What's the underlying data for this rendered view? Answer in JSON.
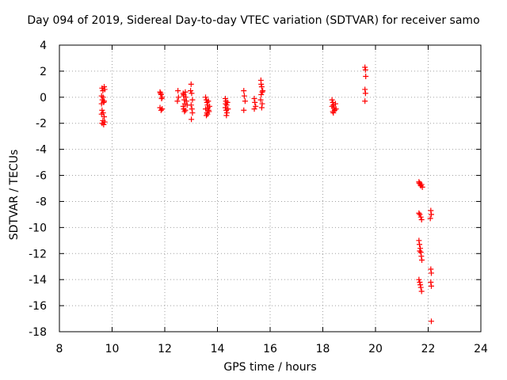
{
  "chart_data": {
    "type": "scatter",
    "title": "Day 094 of 2019, Sidereal Day-to-day VTEC variation (SDTVAR) for receiver samo",
    "xlabel": "GPS time / hours",
    "ylabel": "SDTVAR / TECUs",
    "xlim": [
      8,
      24
    ],
    "ylim": [
      -18,
      4
    ],
    "xticks": [
      8,
      10,
      12,
      14,
      16,
      18,
      20,
      22,
      24
    ],
    "yticks": [
      4,
      2,
      0,
      -2,
      -4,
      -6,
      -8,
      -10,
      -12,
      -14,
      -16,
      -18
    ],
    "grid": true,
    "marker": "+",
    "color": "#ff0000",
    "series": [
      {
        "name": "SDTVAR",
        "points": [
          [
            9.62,
            0.7
          ],
          [
            9.65,
            0.5
          ],
          [
            9.7,
            0.8
          ],
          [
            9.72,
            0.6
          ],
          [
            9.6,
            0.1
          ],
          [
            9.63,
            -0.2
          ],
          [
            9.68,
            -0.4
          ],
          [
            9.6,
            -0.5
          ],
          [
            9.66,
            0.0
          ],
          [
            9.7,
            -0.3
          ],
          [
            9.62,
            -1.0
          ],
          [
            9.66,
            -1.2
          ],
          [
            9.7,
            -1.5
          ],
          [
            9.6,
            -1.3
          ],
          [
            9.65,
            -1.8
          ],
          [
            9.62,
            -2.0
          ],
          [
            9.68,
            -2.1
          ],
          [
            9.72,
            -1.9
          ],
          [
            11.82,
            0.4
          ],
          [
            11.86,
            0.2
          ],
          [
            11.9,
            0.0
          ],
          [
            11.84,
            0.3
          ],
          [
            11.88,
            -0.1
          ],
          [
            11.82,
            -0.8
          ],
          [
            11.86,
            -1.0
          ],
          [
            11.9,
            -0.9
          ],
          [
            12.5,
            0.5
          ],
          [
            12.52,
            0.0
          ],
          [
            12.48,
            -0.3
          ],
          [
            12.7,
            0.3
          ],
          [
            12.72,
            0.1
          ],
          [
            12.74,
            -0.2
          ],
          [
            12.76,
            -0.5
          ],
          [
            12.78,
            0.4
          ],
          [
            12.7,
            -0.7
          ],
          [
            12.72,
            -0.9
          ],
          [
            12.75,
            -1.1
          ],
          [
            12.8,
            0.0
          ],
          [
            12.82,
            -0.3
          ],
          [
            12.85,
            -0.6
          ],
          [
            12.78,
            -1.0
          ],
          [
            12.72,
            0.2
          ],
          [
            13.0,
            1.0
          ],
          [
            13.02,
            0.3
          ],
          [
            13.05,
            -0.2
          ],
          [
            13.0,
            -0.6
          ],
          [
            13.03,
            -0.9
          ],
          [
            13.05,
            -1.2
          ],
          [
            13.01,
            -1.7
          ],
          [
            12.98,
            0.5
          ],
          [
            13.55,
            0.0
          ],
          [
            13.58,
            -0.2
          ],
          [
            13.6,
            -0.4
          ],
          [
            13.62,
            -0.6
          ],
          [
            13.64,
            -0.8
          ],
          [
            13.66,
            -1.0
          ],
          [
            13.6,
            -1.2
          ],
          [
            13.58,
            -1.4
          ],
          [
            13.55,
            -0.9
          ],
          [
            13.65,
            -0.3
          ],
          [
            13.68,
            -1.1
          ],
          [
            13.62,
            -1.3
          ],
          [
            13.7,
            -0.7
          ],
          [
            14.3,
            -0.1
          ],
          [
            14.32,
            -0.3
          ],
          [
            14.35,
            -0.6
          ],
          [
            14.3,
            -0.8
          ],
          [
            14.33,
            -1.0
          ],
          [
            14.36,
            -1.2
          ],
          [
            14.38,
            -0.4
          ],
          [
            14.4,
            -0.9
          ],
          [
            14.34,
            -1.4
          ],
          [
            14.31,
            -0.5
          ],
          [
            15.0,
            0.5
          ],
          [
            15.02,
            0.1
          ],
          [
            15.05,
            -0.3
          ],
          [
            15.0,
            -1.0
          ],
          [
            15.4,
            -0.1
          ],
          [
            15.42,
            -0.4
          ],
          [
            15.45,
            -0.7
          ],
          [
            15.4,
            -0.9
          ],
          [
            15.65,
            1.3
          ],
          [
            15.68,
            0.8
          ],
          [
            15.7,
            0.4
          ],
          [
            15.66,
            0.2
          ],
          [
            15.64,
            -0.2
          ],
          [
            15.7,
            -0.5
          ],
          [
            15.68,
            -0.8
          ],
          [
            15.66,
            1.0
          ],
          [
            15.72,
            0.5
          ],
          [
            18.35,
            -0.2
          ],
          [
            18.38,
            -0.4
          ],
          [
            18.4,
            -0.6
          ],
          [
            18.42,
            -0.8
          ],
          [
            18.45,
            -1.0
          ],
          [
            18.38,
            -1.1
          ],
          [
            18.35,
            -0.7
          ],
          [
            18.48,
            -0.5
          ],
          [
            18.5,
            -0.9
          ],
          [
            18.4,
            -1.2
          ],
          [
            19.6,
            2.3
          ],
          [
            19.62,
            2.1
          ],
          [
            19.63,
            1.6
          ],
          [
            19.6,
            0.6
          ],
          [
            19.62,
            0.3
          ],
          [
            19.6,
            -0.3
          ],
          [
            21.65,
            -6.5
          ],
          [
            21.68,
            -6.6
          ],
          [
            21.7,
            -6.7
          ],
          [
            21.72,
            -6.8
          ],
          [
            21.75,
            -6.7
          ],
          [
            21.78,
            -6.9
          ],
          [
            21.66,
            -6.6
          ],
          [
            21.65,
            -8.9
          ],
          [
            21.68,
            -9.0
          ],
          [
            21.72,
            -9.2
          ],
          [
            21.75,
            -9.4
          ],
          [
            21.65,
            -11.0
          ],
          [
            21.67,
            -11.3
          ],
          [
            21.7,
            -11.6
          ],
          [
            21.72,
            -11.9
          ],
          [
            21.74,
            -12.2
          ],
          [
            21.76,
            -12.5
          ],
          [
            21.68,
            -11.8
          ],
          [
            21.65,
            -14.0
          ],
          [
            21.68,
            -14.2
          ],
          [
            21.7,
            -14.4
          ],
          [
            21.72,
            -14.6
          ],
          [
            21.75,
            -14.9
          ],
          [
            22.1,
            -8.7
          ],
          [
            22.12,
            -9.0
          ],
          [
            22.08,
            -9.3
          ],
          [
            22.1,
            -13.2
          ],
          [
            22.12,
            -13.5
          ],
          [
            22.1,
            -14.2
          ],
          [
            22.12,
            -14.5
          ],
          [
            22.12,
            -17.2
          ]
        ]
      }
    ]
  }
}
